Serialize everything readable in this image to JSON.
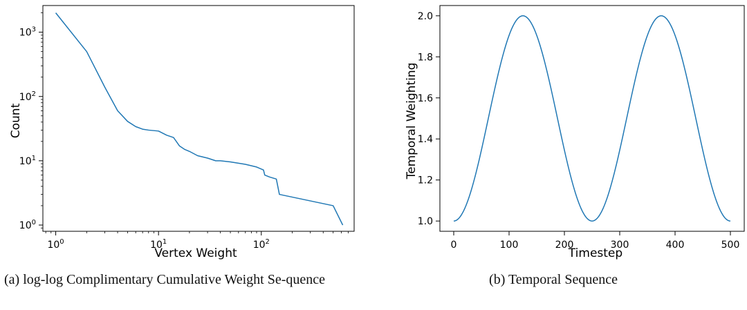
{
  "chart_data": [
    {
      "type": "line",
      "xscale": "log",
      "yscale": "log",
      "xlabel": "Vertex Weight",
      "ylabel": "Count",
      "xlim": [
        0.75,
        800
      ],
      "ylim": [
        0.8,
        2600
      ],
      "x_ticks": [
        1,
        10,
        100
      ],
      "x_tick_labels": [
        {
          "base": "10",
          "exp": "0"
        },
        {
          "base": "10",
          "exp": "1"
        },
        {
          "base": "10",
          "exp": "2"
        }
      ],
      "y_ticks": [
        1,
        10,
        100,
        1000
      ],
      "y_tick_labels": [
        {
          "base": "10",
          "exp": "0"
        },
        {
          "base": "10",
          "exp": "1"
        },
        {
          "base": "10",
          "exp": "2"
        },
        {
          "base": "10",
          "exp": "3"
        }
      ],
      "color": "#1f77b4",
      "grid": false,
      "series": [
        {
          "x": [
            1,
            2,
            3,
            4,
            5,
            6,
            7,
            8,
            10,
            12,
            14,
            16,
            18,
            20,
            24,
            30,
            36,
            40,
            50,
            70,
            90,
            105,
            108,
            120,
            140,
            150,
            500,
            620
          ],
          "y": [
            2000,
            500,
            140,
            60,
            41,
            34,
            31,
            30,
            29,
            25,
            23,
            17,
            15,
            14,
            12,
            11,
            10,
            10,
            9.6,
            8.8,
            8,
            7.2,
            6,
            5.6,
            5.2,
            3,
            2,
            1
          ]
        }
      ]
    },
    {
      "type": "line",
      "xlabel": "Timestep",
      "ylabel": "Temporal Weighting",
      "xlim": [
        -25,
        525
      ],
      "ylim": [
        0.95,
        2.05
      ],
      "x_ticks": [
        0,
        100,
        200,
        300,
        400,
        500
      ],
      "x_tick_labels": [
        "0",
        "100",
        "200",
        "300",
        "400",
        "500"
      ],
      "y_ticks": [
        1.0,
        1.2,
        1.4,
        1.6,
        1.8,
        2.0
      ],
      "y_tick_labels": [
        "1.0",
        "1.2",
        "1.4",
        "1.6",
        "1.8",
        "2.0"
      ],
      "color": "#1f77b4",
      "grid": false,
      "series": [
        {
          "x": [
            0,
            25,
            50,
            75,
            100,
            125,
            150,
            175,
            200,
            225,
            250,
            275,
            300,
            325,
            350,
            375,
            400,
            425,
            450,
            475,
            500
          ],
          "y": [
            1.0,
            1.095,
            1.345,
            1.655,
            1.905,
            2.0,
            1.905,
            1.655,
            1.345,
            1.095,
            1.0,
            1.095,
            1.345,
            1.655,
            1.905,
            2.0,
            1.905,
            1.655,
            1.345,
            1.095,
            1.0
          ]
        }
      ]
    }
  ],
  "captions": {
    "a": "(a) log-log Complimentary Cumulative Weight Se-quence",
    "b": "(b) Temporal Sequence"
  }
}
